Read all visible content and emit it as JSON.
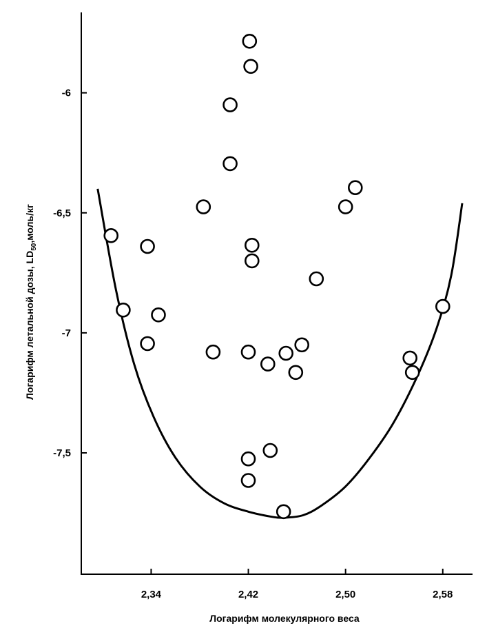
{
  "chart_data": {
    "type": "scatter",
    "title": "",
    "xlabel": "Логарифм молекулярного веса",
    "ylabel": {
      "prefix": "Логарифм летальной дозы, LD",
      "sub": "50",
      "suffix": ",моль/кг"
    },
    "xlim": [
      2.2825,
      2.6045
    ],
    "ylim": [
      -8.0055,
      -5.665
    ],
    "xticks": [
      {
        "value": 2.34,
        "label": "2,34"
      },
      {
        "value": 2.42,
        "label": "2,42"
      },
      {
        "value": 2.5,
        "label": "2,50"
      },
      {
        "value": 2.58,
        "label": "2,58"
      }
    ],
    "yticks": [
      {
        "value": -6.0,
        "label": "-6"
      },
      {
        "value": -6.5,
        "label": "-6,5"
      },
      {
        "value": -7.0,
        "label": "-7"
      },
      {
        "value": -7.5,
        "label": "-7,5"
      }
    ],
    "points": [
      {
        "x": 2.421,
        "y": -5.785
      },
      {
        "x": 2.422,
        "y": -5.89
      },
      {
        "x": 2.405,
        "y": -6.05
      },
      {
        "x": 2.405,
        "y": -6.295
      },
      {
        "x": 2.383,
        "y": -6.475
      },
      {
        "x": 2.5,
        "y": -6.475
      },
      {
        "x": 2.508,
        "y": -6.395
      },
      {
        "x": 2.307,
        "y": -6.595
      },
      {
        "x": 2.337,
        "y": -6.64
      },
      {
        "x": 2.423,
        "y": -6.635
      },
      {
        "x": 2.423,
        "y": -6.7
      },
      {
        "x": 2.476,
        "y": -6.775
      },
      {
        "x": 2.317,
        "y": -6.905
      },
      {
        "x": 2.346,
        "y": -6.925
      },
      {
        "x": 2.58,
        "y": -6.89
      },
      {
        "x": 2.337,
        "y": -7.045
      },
      {
        "x": 2.391,
        "y": -7.08
      },
      {
        "x": 2.42,
        "y": -7.08
      },
      {
        "x": 2.436,
        "y": -7.13
      },
      {
        "x": 2.451,
        "y": -7.085
      },
      {
        "x": 2.464,
        "y": -7.05
      },
      {
        "x": 2.459,
        "y": -7.165
      },
      {
        "x": 2.553,
        "y": -7.105
      },
      {
        "x": 2.555,
        "y": -7.165
      },
      {
        "x": 2.42,
        "y": -7.525
      },
      {
        "x": 2.438,
        "y": -7.49
      },
      {
        "x": 2.42,
        "y": -7.615
      },
      {
        "x": 2.449,
        "y": -7.745
      }
    ],
    "curve": [
      {
        "x": 2.296,
        "y": -6.4
      },
      {
        "x": 2.311,
        "y": -6.82
      },
      {
        "x": 2.326,
        "y": -7.13
      },
      {
        "x": 2.342,
        "y": -7.35
      },
      {
        "x": 2.36,
        "y": -7.52
      },
      {
        "x": 2.38,
        "y": -7.64
      },
      {
        "x": 2.4,
        "y": -7.71
      },
      {
        "x": 2.42,
        "y": -7.745
      },
      {
        "x": 2.438,
        "y": -7.765
      },
      {
        "x": 2.449,
        "y": -7.77
      },
      {
        "x": 2.465,
        "y": -7.76
      },
      {
        "x": 2.48,
        "y": -7.72
      },
      {
        "x": 2.5,
        "y": -7.64
      },
      {
        "x": 2.52,
        "y": -7.52
      },
      {
        "x": 2.54,
        "y": -7.37
      },
      {
        "x": 2.56,
        "y": -7.17
      },
      {
        "x": 2.575,
        "y": -6.98
      },
      {
        "x": 2.587,
        "y": -6.76
      },
      {
        "x": 2.596,
        "y": -6.46
      }
    ],
    "grid": false,
    "legend": "none"
  }
}
